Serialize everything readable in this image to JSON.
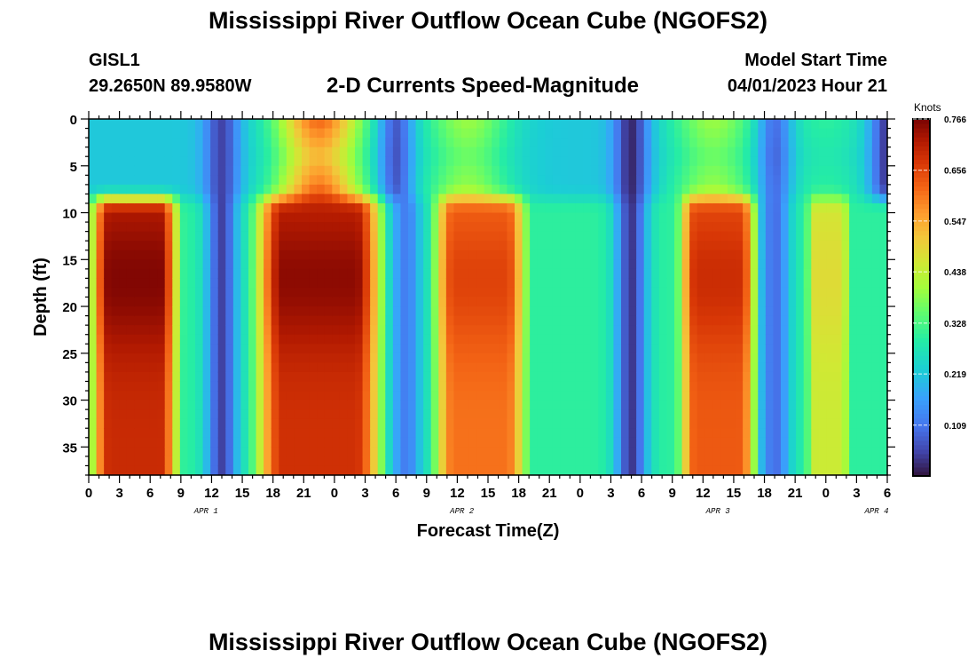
{
  "header": {
    "title": "Mississippi River Outflow Ocean Cube (NGOFS2)",
    "station": "GISL1",
    "coords": "29.2650N  89.9580W",
    "subtitle": "2-D Currents Speed-Magnitude",
    "start_label": "Model Start Time",
    "start_value": "04/01/2023 Hour 21"
  },
  "footer": {
    "title": "Mississippi River Outflow Ocean Cube (NGOFS2)"
  },
  "chart_data": {
    "type": "heatmap",
    "xlabel": "Forecast Time(Z)",
    "ylabel": "Depth (ft)",
    "x_unit": "hours from 04/01/2023 00Z",
    "xlim": [
      0,
      78
    ],
    "ylim": [
      0,
      38
    ],
    "y_inverted": true,
    "x_ticks": [
      0,
      3,
      6,
      9,
      12,
      15,
      18,
      21,
      24,
      27,
      30,
      33,
      36,
      39,
      42,
      45,
      48,
      51,
      54,
      57,
      60,
      63,
      66,
      69,
      72,
      75,
      78
    ],
    "x_tick_labels": [
      "0",
      "3",
      "6",
      "9",
      "12",
      "15",
      "18",
      "21",
      "0",
      "3",
      "6",
      "9",
      "12",
      "15",
      "18",
      "21",
      "0",
      "3",
      "6",
      "9",
      "12",
      "15",
      "18",
      "21",
      "0",
      "3",
      "6"
    ],
    "y_ticks": [
      0,
      5,
      10,
      15,
      20,
      25,
      30,
      35
    ],
    "y_tick_labels": [
      "0",
      "5",
      "10",
      "15",
      "20",
      "25",
      "30",
      "35"
    ],
    "date_labels": [
      {
        "text": "APR 1",
        "x": 12.5
      },
      {
        "text": "APR 2",
        "x": 37.5
      },
      {
        "text": "APR 3",
        "x": 62.5
      },
      {
        "text": "APR 4",
        "x": 78
      }
    ],
    "colorbar": {
      "label": "Knots",
      "min": 0.0,
      "max": 0.766,
      "ticks": [
        0.766,
        0.656,
        0.547,
        0.438,
        0.328,
        0.219,
        0.109
      ],
      "tick_labels": [
        "0.766",
        "0.656",
        "0.547",
        "0.438",
        "0.328",
        "0.219",
        "0.109"
      ]
    },
    "bottom_layer": {
      "depth_top": 10,
      "blobs": [
        {
          "t0": 0,
          "t1": 9,
          "peak": 0.76
        },
        {
          "t0": 16,
          "t1": 29,
          "peak": 0.75
        },
        {
          "t0": 33.5,
          "t1": 43,
          "peak": 0.66
        },
        {
          "t0": 57.5,
          "t1": 65.5,
          "peak": 0.69
        },
        {
          "t0": 70,
          "t1": 74.5,
          "peak": 0.48
        }
      ],
      "minima": [
        {
          "t": 13,
          "value": 0.05
        },
        {
          "t": 31,
          "value": 0.12
        },
        {
          "t": 53,
          "value": 0.04
        },
        {
          "t": 67,
          "value": 0.1
        }
      ]
    },
    "surface_layer": {
      "depth_bottom": 8,
      "peaks": [
        {
          "t": 22.5,
          "value": 0.62
        },
        {
          "t": 37,
          "value": 0.4
        },
        {
          "t": 61,
          "value": 0.4
        },
        {
          "t": 72,
          "value": 0.3
        }
      ],
      "minima": [
        {
          "t": 13,
          "value": 0.05
        },
        {
          "t": 30,
          "value": 0.05
        },
        {
          "t": 53,
          "value": 0.02
        },
        {
          "t": 67,
          "value": 0.06
        },
        {
          "t": 78,
          "value": 0.03
        }
      ]
    }
  }
}
